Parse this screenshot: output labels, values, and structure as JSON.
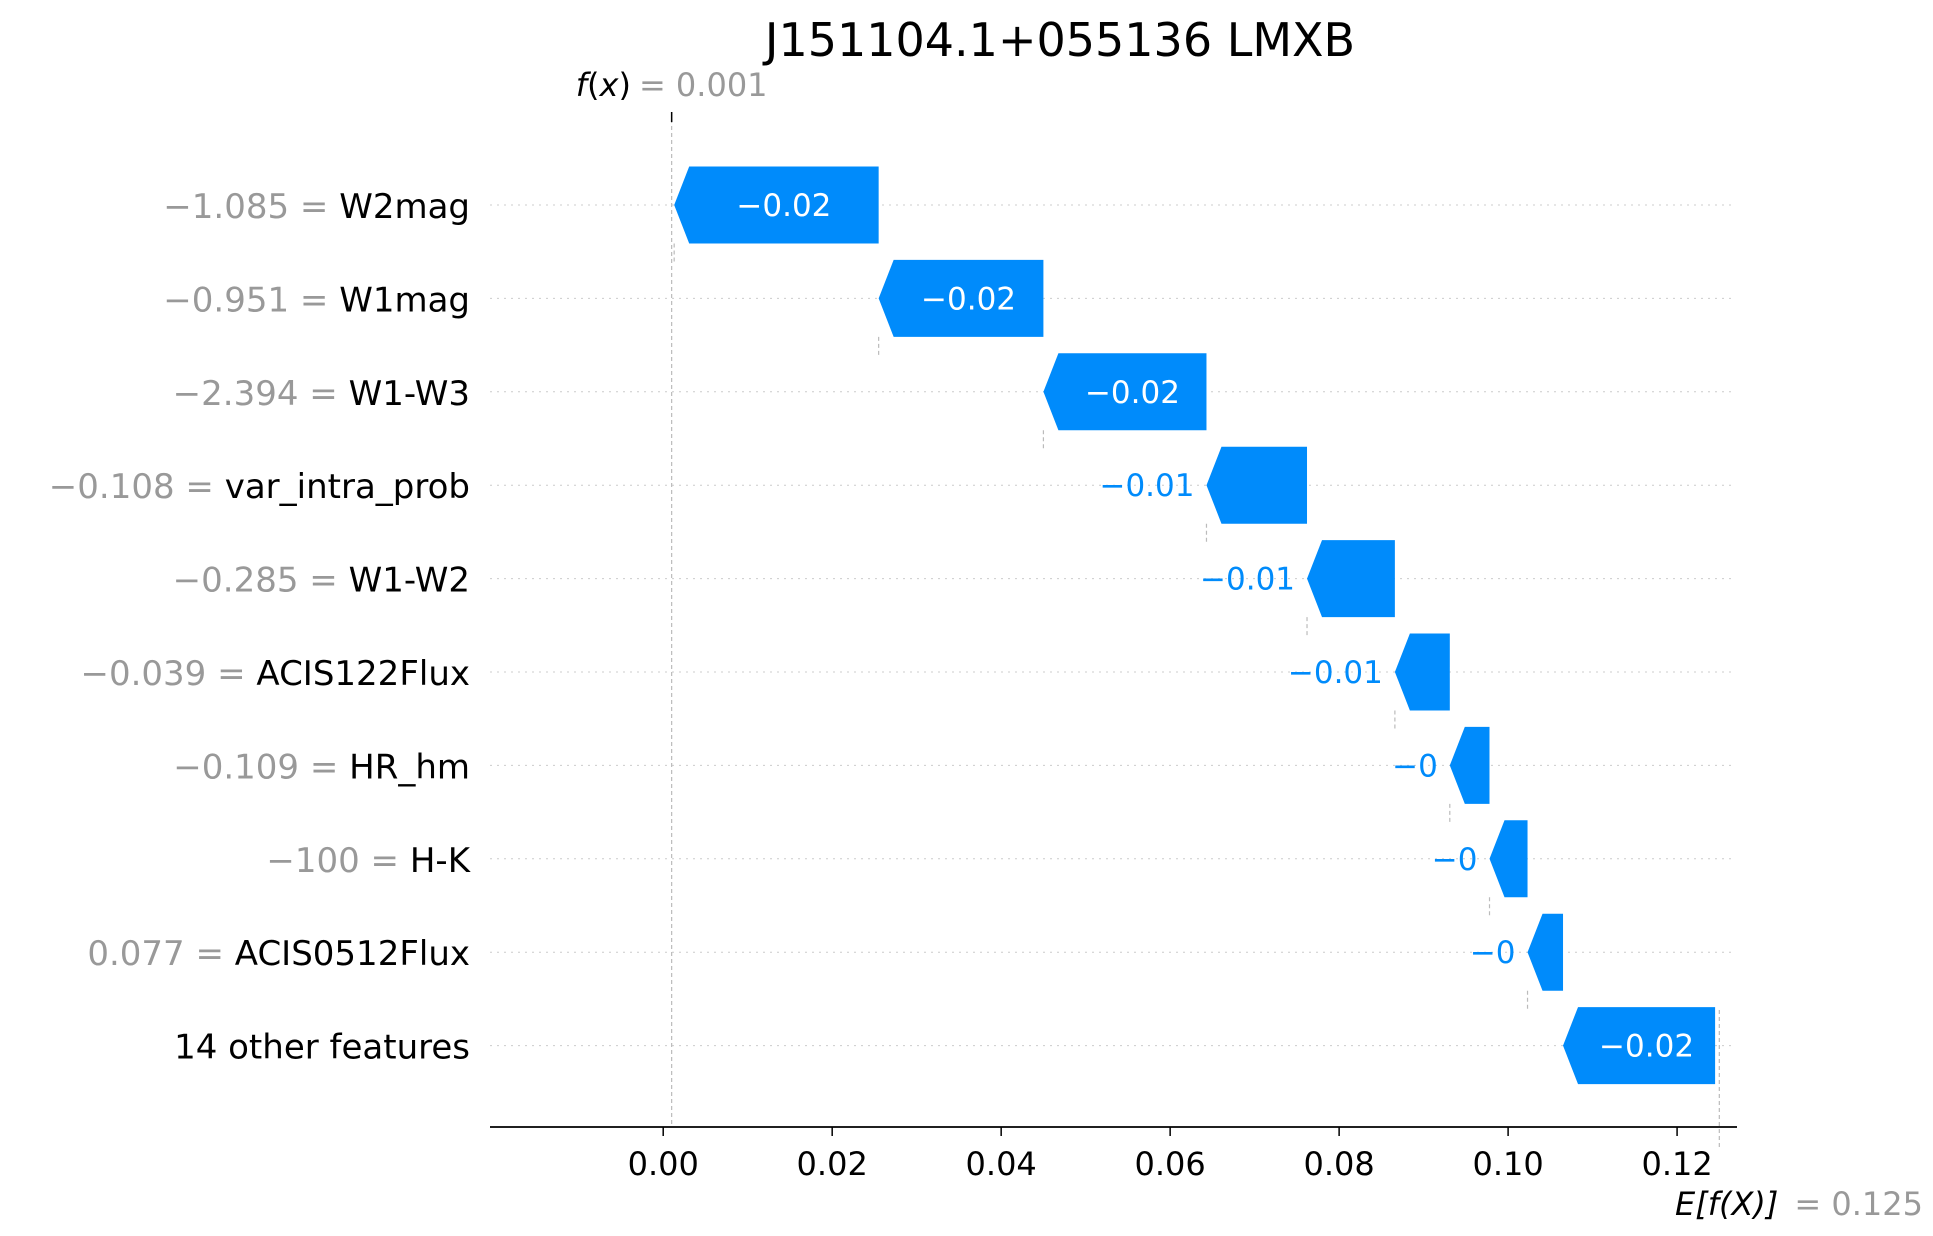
{
  "chart_data": {
    "type": "bar",
    "title": "J151104.1+055136 LMXB",
    "fx": {
      "symbol_f": "f",
      "symbol_x": "x",
      "equals": "= 0.001",
      "value": 0.001
    },
    "efx": {
      "symbol": "E[f(X)]",
      "equals": "= 0.125",
      "value": 0.125
    },
    "xlim": [
      -0.0205,
      0.1265
    ],
    "ticks": [
      0.0,
      0.02,
      0.04,
      0.06,
      0.08,
      0.1,
      0.12
    ],
    "tick_labels": [
      "0.00",
      "0.02",
      "0.04",
      "0.06",
      "0.08",
      "0.10",
      "0.12"
    ],
    "color": "#008bfb",
    "rows": [
      {
        "value_text": "−1.085 = ",
        "feature": "W2mag",
        "label": "−0.02",
        "start": 0.0255,
        "end": 0.0013
      },
      {
        "value_text": "−0.951 = ",
        "feature": "W1mag",
        "label": "−0.02",
        "start": 0.045,
        "end": 0.0255
      },
      {
        "value_text": "−2.394 = ",
        "feature": "W1-W3",
        "label": "−0.02",
        "start": 0.0643,
        "end": 0.045
      },
      {
        "value_text": "−0.108 = ",
        "feature": "var_intra_prob",
        "label": "−0.01",
        "start": 0.0762,
        "end": 0.0643
      },
      {
        "value_text": "−0.285 = ",
        "feature": "W1-W2",
        "label": "−0.01",
        "start": 0.0866,
        "end": 0.0762
      },
      {
        "value_text": "−0.039 = ",
        "feature": "ACIS122Flux",
        "label": "−0.01",
        "start": 0.0931,
        "end": 0.0866
      },
      {
        "value_text": "−0.109 = ",
        "feature": "HR_hm",
        "label": "−0",
        "start": 0.0978,
        "end": 0.0931
      },
      {
        "value_text": "−100 = ",
        "feature": "H-K",
        "label": "−0",
        "start": 0.1023,
        "end": 0.0978
      },
      {
        "value_text": "0.077 = ",
        "feature": "ACIS0512Flux",
        "label": "−0",
        "start": 0.1065,
        "end": 0.1023
      },
      {
        "value_text": "",
        "feature": "14 other features",
        "label": "−0.02",
        "start": 0.1245,
        "end": 0.1065
      }
    ]
  }
}
